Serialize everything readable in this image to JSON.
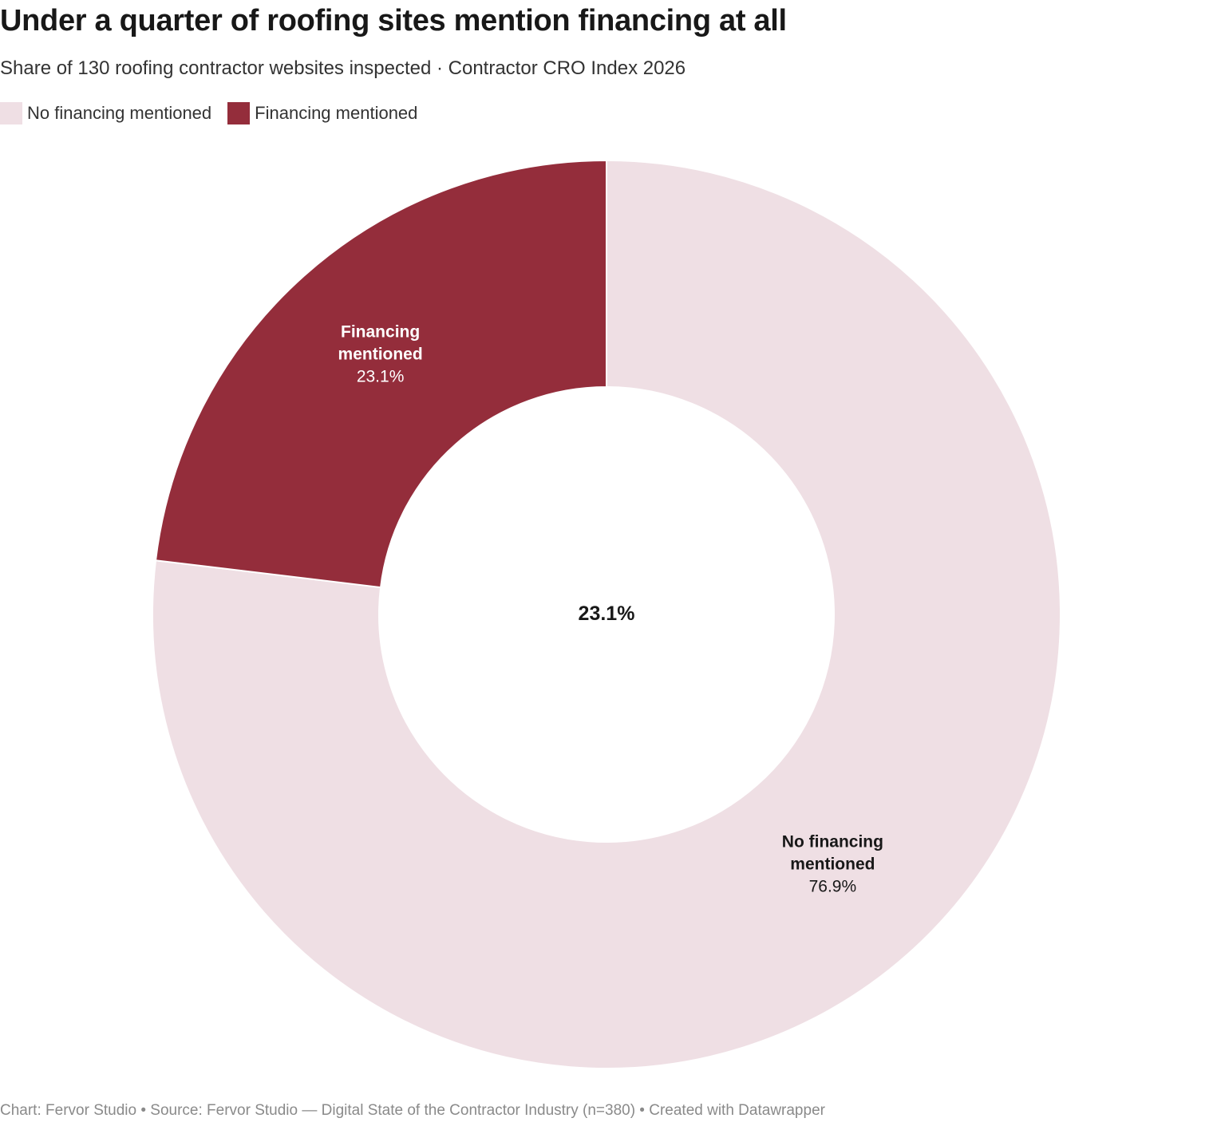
{
  "title": "Under a quarter of roofing sites mention financing at all",
  "subtitle": "Share of 130 roofing contractor websites inspected · Contractor CRO Index 2026",
  "footer": "Chart: Fervor Studio • Source: Fervor Studio — Digital State of the Contractor Industry (n=380) • Created with Datawrapper",
  "chart_data": {
    "type": "pie",
    "variant": "donut",
    "center_label": "23.1%",
    "legend_position": "top-left",
    "slices": [
      {
        "name": "No financing mentioned",
        "label_line1": "No financing",
        "label_line2": "mentioned",
        "value": 76.9,
        "value_label": "76.9%",
        "color": "#efdfe4",
        "label_color": "#181818"
      },
      {
        "name": "Financing mentioned",
        "label_line1": "Financing",
        "label_line2": "mentioned",
        "value": 23.1,
        "value_label": "23.1%",
        "color": "#942d3b",
        "label_color": "#ffffff"
      }
    ]
  }
}
